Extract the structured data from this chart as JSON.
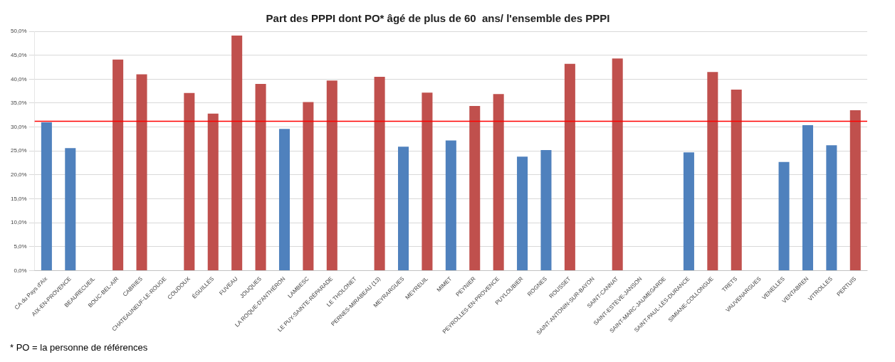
{
  "chart_data": {
    "type": "bar",
    "title": "Part des PPPI dont PO* âgé de plus de 60  ans/ l'ensemble des PPPI",
    "categories": [
      "CA du Pays d'Aix",
      "AIX-EN-PROVENCE",
      "BEAURECUEIL",
      "BOUC-BEL-AIR",
      "CABRIES",
      "CHATEAUNEUF-LE-ROUGE",
      "COUDOUX",
      "ÉGUILLES",
      "FUVEAU",
      "JOUQUES",
      "LA ROQUE-D'ANTHÉRON",
      "LAMBESC",
      "LE PUY-SAINTE-RÉPARADE",
      "LE THOLONET",
      "PERNES-MIRABEAU (13)",
      "MEYRARGUES",
      "MEYREUIL",
      "MIMET",
      "PEYNIER",
      "PEYROLLES-EN-PROVENCE",
      "PUYLOUBIER",
      "ROGNES",
      "ROUSSET",
      "SAINT-ANTONIN-SUR-BAYON",
      "SAINT-CANNAT",
      "SAINT-ESTÈVE-JANSON",
      "SAINT-MARC-JAUMEGARDE",
      "SAINT-PAUL-LÈS-DURANCE",
      "SIMIANE-COLLONGUE",
      "TRETS",
      "VAUVENARGUES",
      "VENELLES",
      "VENTABREN",
      "VITROLLES",
      "PERTUIS"
    ],
    "values": [
      31.0,
      25.6,
      null,
      44.1,
      41.0,
      null,
      37.1,
      32.8,
      49.1,
      39.0,
      29.6,
      35.2,
      39.7,
      null,
      40.5,
      25.9,
      37.2,
      27.2,
      34.4,
      36.9,
      23.8,
      25.2,
      43.2,
      null,
      44.3,
      null,
      null,
      24.7,
      41.5,
      37.8,
      null,
      22.7,
      30.4,
      26.2,
      33.5
    ],
    "colors": [
      "#4f81bd",
      "#4f81bd",
      null,
      "#c0504d",
      "#c0504d",
      null,
      "#c0504d",
      "#c0504d",
      "#c0504d",
      "#c0504d",
      "#4f81bd",
      "#c0504d",
      "#c0504d",
      null,
      "#c0504d",
      "#4f81bd",
      "#c0504d",
      "#4f81bd",
      "#c0504d",
      "#c0504d",
      "#4f81bd",
      "#4f81bd",
      "#c0504d",
      null,
      "#c0504d",
      null,
      null,
      "#4f81bd",
      "#c0504d",
      "#c0504d",
      null,
      "#4f81bd",
      "#4f81bd",
      "#4f81bd",
      "#c0504d"
    ],
    "ylim": [
      0,
      50
    ],
    "yticks": [
      {
        "value": 0,
        "label": "0,0%"
      },
      {
        "value": 5,
        "label": "5,0%"
      },
      {
        "value": 10,
        "label": "10,0%"
      },
      {
        "value": 15,
        "label": "15,0%"
      },
      {
        "value": 20,
        "label": "20,0%"
      },
      {
        "value": 25,
        "label": "25,0%"
      },
      {
        "value": 30,
        "label": "30,0%"
      },
      {
        "value": 35,
        "label": "35,0%"
      },
      {
        "value": 40,
        "label": "40,0%"
      },
      {
        "value": 45,
        "label": "45,0%"
      },
      {
        "value": 50,
        "label": "50,0%"
      }
    ],
    "grid": "y",
    "ref_lines": [
      {
        "axis": "y",
        "value": 31.2,
        "color": "#ff0000"
      }
    ],
    "annotations": [
      "* PO = la personne de références"
    ]
  }
}
